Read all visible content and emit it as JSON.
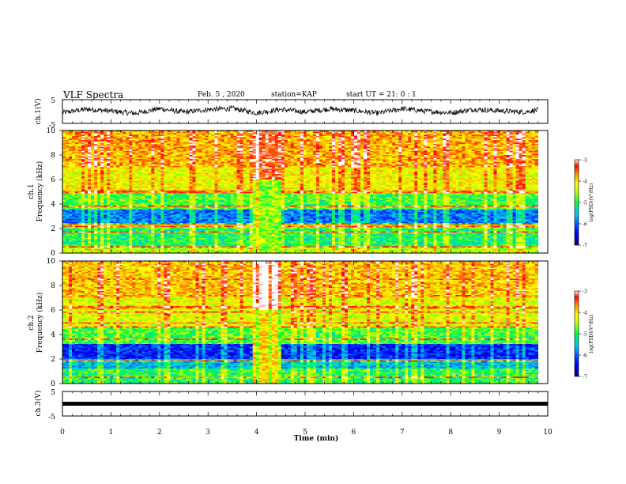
{
  "header": {
    "title": "VLF Spectra",
    "date": "Feb. 5 , 2020",
    "station": "station=KAP",
    "start": "start UT = 21: 0 : 1"
  },
  "colorbar": {
    "label": "log(PSD)(V²/Hz)",
    "ticks": [
      "-3",
      "-4",
      "-5",
      "-6",
      "-7"
    ],
    "range": [
      -7,
      -3
    ]
  },
  "chart_data": [
    {
      "type": "line",
      "panel": "ch1-waveform",
      "ylabel": "ch.1(V)",
      "ylim": [
        -5,
        5
      ],
      "ytick_labels": [
        "5",
        "-5"
      ],
      "xlim": [
        0,
        10
      ],
      "note_series": "noisy waveform oscillating roughly between -1.8 and 1.8 V over 0-9.8 min",
      "x": [
        0,
        0.5,
        1,
        1.5,
        2,
        2.5,
        3,
        3.5,
        4,
        4.5,
        5,
        5.5,
        6,
        6.5,
        7,
        7.5,
        8,
        8.5,
        9,
        9.5,
        9.8
      ],
      "y": [
        -0.5,
        1.0,
        0.2,
        -0.8,
        1.2,
        -0.3,
        0.8,
        1.3,
        -0.6,
        0.9,
        -0.2,
        1.1,
        0.4,
        -0.7,
        1.2,
        0.1,
        -0.5,
        0.9,
        0.3,
        -0.2,
        0.6
      ]
    },
    {
      "type": "heatmap",
      "panel": "ch1-spectrogram",
      "ylabel": "ch.1\nFrequency (kHz)",
      "ylim": [
        0,
        10
      ],
      "ytick_labels": [
        "0",
        "2",
        "4",
        "6",
        "8",
        "10"
      ],
      "xlim": [
        0,
        10
      ],
      "data_x_extent": [
        0,
        9.8
      ],
      "value_range": [
        -7,
        -3
      ],
      "gap_interval_min": [
        3.92,
        4.52
      ],
      "bands_khz": [
        {
          "f0": 0,
          "f1": 0.6,
          "level": -4.5
        },
        {
          "f0": 0.6,
          "f1": 2.0,
          "level": -5.1
        },
        {
          "f0": 2.0,
          "f1": 2.5,
          "level": -4.8
        },
        {
          "f0": 2.5,
          "f1": 3.6,
          "level": -5.9
        },
        {
          "f0": 3.6,
          "f1": 5.0,
          "level": -4.9
        },
        {
          "f0": 5.0,
          "f1": 7.0,
          "level": -4.2
        },
        {
          "f0": 7.0,
          "f1": 10.0,
          "level": -3.8
        }
      ],
      "tone_lines_khz": [
        0.5,
        1.7,
        2.2,
        2.4,
        3.8,
        4.9,
        5.0
      ]
    },
    {
      "type": "heatmap",
      "panel": "ch2-spectrogram",
      "ylabel": "ch.2\nFrequency (kHz)",
      "ylim": [
        0,
        10
      ],
      "ytick_labels": [
        "0",
        "2",
        "4",
        "6",
        "8",
        "10"
      ],
      "xlim": [
        0,
        10
      ],
      "data_x_extent": [
        0,
        9.8
      ],
      "value_range": [
        -7,
        -3
      ],
      "gap_interval_min": [
        3.92,
        4.52
      ],
      "bands_khz": [
        {
          "f0": 0,
          "f1": 1.2,
          "level": -5.0
        },
        {
          "f0": 1.2,
          "f1": 2.0,
          "level": -5.6
        },
        {
          "f0": 2.0,
          "f1": 3.2,
          "level": -6.3
        },
        {
          "f0": 3.2,
          "f1": 4.6,
          "level": -4.9
        },
        {
          "f0": 4.6,
          "f1": 7.0,
          "level": -4.3
        },
        {
          "f0": 7.0,
          "f1": 10.0,
          "level": -3.9
        }
      ],
      "tone_lines_khz": [
        0.5,
        1.8,
        3.6,
        4.6,
        4.9,
        5.8,
        6.2,
        6.3,
        7.2,
        8.5
      ]
    },
    {
      "type": "line",
      "panel": "ch3-waveform",
      "ylabel": "ch.3(V)",
      "ylim": [
        -5,
        5
      ],
      "ytick_labels": [
        "5",
        "-5"
      ],
      "xlim": [
        0,
        10
      ],
      "xlabel": "Time (min)",
      "xtick_labels": [
        "0",
        "1",
        "2",
        "3",
        "4",
        "5",
        "6",
        "7",
        "8",
        "9",
        "10"
      ],
      "x": [
        0,
        9.8
      ],
      "y": [
        0,
        0
      ]
    }
  ]
}
